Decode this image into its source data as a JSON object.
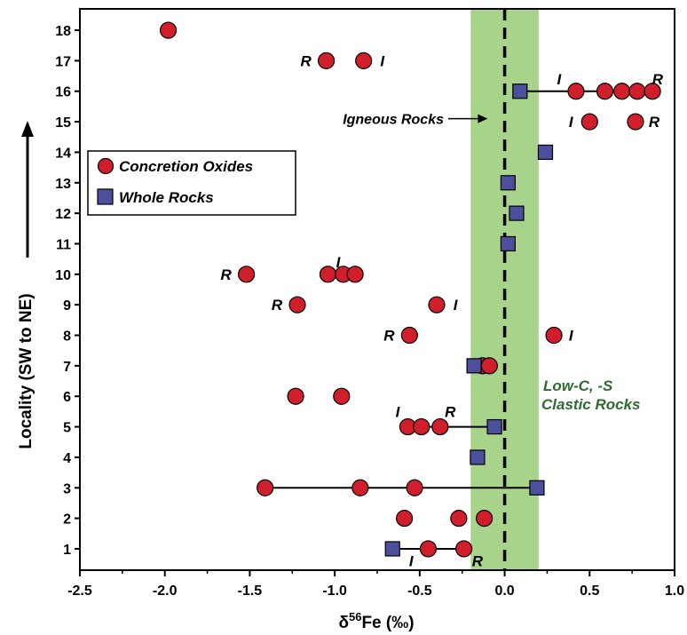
{
  "chart_data": {
    "type": "scatter",
    "xlabel_delta": "δ",
    "xlabel_sup": "56",
    "xlabel_rest": "Fe  (‰)",
    "ylabel": "Locality (SW to NE)",
    "xlim": [
      -2.5,
      1.0
    ],
    "ylim": [
      0.3,
      18.7
    ],
    "x_ticks": [
      -2.5,
      -2.0,
      -1.5,
      -1.0,
      -0.5,
      0.0,
      0.5,
      1.0
    ],
    "x_tick_labels": [
      "-2.5",
      "-2.0",
      "-1.5",
      "-1.0",
      "-0.5",
      "0.0",
      "0.5",
      "1.0"
    ],
    "y_ticks": [
      1,
      2,
      3,
      4,
      5,
      6,
      7,
      8,
      9,
      10,
      11,
      12,
      13,
      14,
      15,
      16,
      17,
      18
    ],
    "y_tick_labels": [
      "1",
      "2",
      "3",
      "4",
      "5",
      "6",
      "7",
      "8",
      "9",
      "10",
      "11",
      "12",
      "13",
      "14",
      "15",
      "16",
      "17",
      "18"
    ],
    "band": {
      "x_range": [
        -0.2,
        0.2
      ],
      "color": "#a8d38a"
    },
    "reference_line_x": 0.0,
    "series": [
      {
        "name": "Concretion Oxides",
        "marker": "circle",
        "color": "#d01f2b",
        "points": [
          [
            -1.98,
            18
          ],
          [
            -1.05,
            17
          ],
          [
            -0.83,
            17
          ],
          [
            0.42,
            16
          ],
          [
            0.59,
            16
          ],
          [
            0.69,
            16
          ],
          [
            0.78,
            16
          ],
          [
            0.87,
            16
          ],
          [
            0.5,
            15
          ],
          [
            0.77,
            15
          ],
          [
            -1.52,
            10
          ],
          [
            -1.04,
            10
          ],
          [
            -0.95,
            10
          ],
          [
            -0.88,
            10
          ],
          [
            -1.22,
            9
          ],
          [
            -0.4,
            9
          ],
          [
            -0.56,
            8
          ],
          [
            0.29,
            8
          ],
          [
            -0.13,
            7
          ],
          [
            -0.09,
            7
          ],
          [
            -1.23,
            6
          ],
          [
            -0.96,
            6
          ],
          [
            -0.57,
            5
          ],
          [
            -0.49,
            5
          ],
          [
            -0.38,
            5
          ],
          [
            -1.41,
            3
          ],
          [
            -0.85,
            3
          ],
          [
            -0.53,
            3
          ],
          [
            -0.59,
            2
          ],
          [
            -0.27,
            2
          ],
          [
            -0.12,
            2
          ],
          [
            -0.45,
            1
          ],
          [
            -0.24,
            1
          ]
        ]
      },
      {
        "name": "Whole Rocks",
        "marker": "square",
        "color": "#4b4f9c",
        "points": [
          [
            0.09,
            16
          ],
          [
            0.24,
            14
          ],
          [
            0.02,
            13
          ],
          [
            0.07,
            12
          ],
          [
            0.02,
            11
          ],
          [
            -0.18,
            7
          ],
          [
            -0.06,
            5
          ],
          [
            -0.16,
            4
          ],
          [
            0.19,
            3
          ],
          [
            -0.66,
            1
          ]
        ]
      }
    ],
    "connector_lines": [
      {
        "y": 16,
        "x_from": 0.09,
        "x_to": 0.87
      },
      {
        "y": 5,
        "x_from": -0.57,
        "x_to": -0.06
      },
      {
        "y": 3,
        "x_from": -1.41,
        "x_to": 0.19
      },
      {
        "y": 1,
        "x_from": -0.66,
        "x_to": -0.24
      }
    ],
    "point_letters": [
      {
        "text": "R",
        "x": -1.17,
        "y": 17
      },
      {
        "text": "I",
        "x": -0.72,
        "y": 17
      },
      {
        "text": "I",
        "x": 0.32,
        "y": 16.4
      },
      {
        "text": "R",
        "x": 0.9,
        "y": 16.4
      },
      {
        "text": "I",
        "x": 0.39,
        "y": 15
      },
      {
        "text": "R",
        "x": 0.88,
        "y": 15
      },
      {
        "text": "I",
        "x": -0.98,
        "y": 10.4
      },
      {
        "text": "R",
        "x": -1.64,
        "y": 10
      },
      {
        "text": "R",
        "x": -1.34,
        "y": 9
      },
      {
        "text": "I",
        "x": -0.29,
        "y": 9
      },
      {
        "text": "R",
        "x": -0.68,
        "y": 8
      },
      {
        "text": "I",
        "x": 0.39,
        "y": 8
      },
      {
        "text": "I",
        "x": -0.63,
        "y": 5.5
      },
      {
        "text": "R",
        "x": -0.32,
        "y": 5.5
      },
      {
        "text": "I",
        "x": -0.55,
        "y": 0.6
      },
      {
        "text": "R",
        "x": -0.16,
        "y": 0.6
      }
    ],
    "annotations": {
      "igneous": {
        "text": "Igneous Rocks",
        "arrow_to_x": -0.1,
        "y": 15.1
      },
      "clastic_line1": "Low-C, -S",
      "clastic_line2": "Clastic Rocks"
    },
    "legend": {
      "placement": "top-left",
      "entries": [
        "Concretion Oxides",
        "Whole Rocks"
      ]
    }
  }
}
